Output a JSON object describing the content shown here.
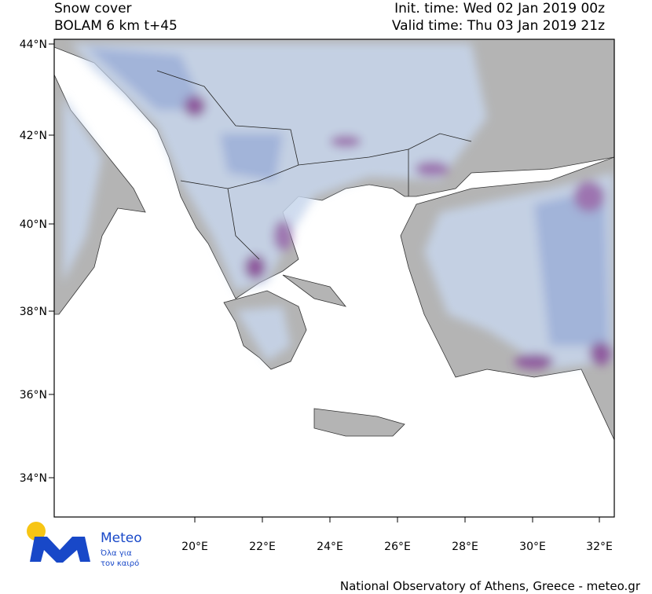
{
  "header": {
    "title": "Snow cover",
    "model": "BOLAM 6 km t+45",
    "init_time": "Init. time: Wed 02 Jan 2019 00z",
    "valid_time": "Valid time: Thu 03 Jan 2019 21z"
  },
  "axes": {
    "lat_ticks": [
      "44°N",
      "42°N",
      "40°N",
      "38°N",
      "36°N",
      "34°N"
    ],
    "lon_ticks": [
      "20°E",
      "22°E",
      "24°E",
      "26°E",
      "28°E",
      "30°E",
      "32°E"
    ]
  },
  "logo": {
    "name": "Meteo",
    "tagline_1": "Όλα για",
    "tagline_2": "τον καιρό"
  },
  "footer": "National Observatory of Athens, Greece - meteo.gr"
}
